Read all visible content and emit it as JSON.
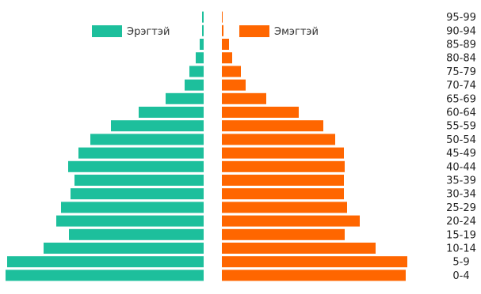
{
  "chart_data": {
    "type": "bar",
    "orientation": "horizontal-butterfly",
    "categories": [
      "0-4",
      "5-9",
      "10-14",
      "15-19",
      "20-24",
      "25-29",
      "30-34",
      "35-39",
      "40-44",
      "45-49",
      "50-54",
      "55-59",
      "60-64",
      "65-69",
      "70-74",
      "75-79",
      "80-84",
      "85-89",
      "90-94",
      "95-99"
    ],
    "series": [
      {
        "name": "Эрэгтэй",
        "color": "#1dbf9c",
        "side": "left",
        "values": [
          250,
          248,
          202,
          170,
          186,
          180,
          168,
          163,
          171,
          158,
          143,
          117,
          82,
          48,
          24,
          18,
          10,
          5,
          2,
          2
        ]
      },
      {
        "name": "Эмэгтэй",
        "color": "#ff6600",
        "side": "right",
        "values": [
          232,
          234,
          194,
          155,
          174,
          158,
          154,
          154,
          155,
          154,
          143,
          128,
          97,
          56,
          30,
          24,
          13,
          9,
          2,
          1
        ]
      }
    ],
    "legend": "top",
    "grid": false,
    "category_axis_position": "right",
    "category_order": "bottom-to-top"
  }
}
